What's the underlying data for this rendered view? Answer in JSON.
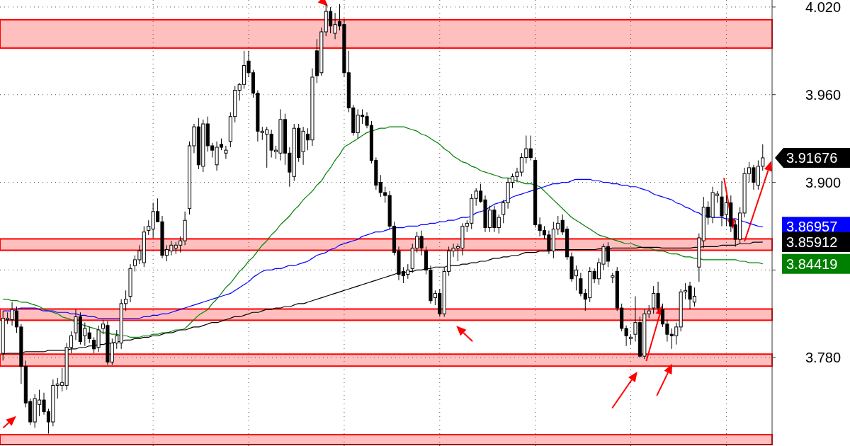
{
  "chart_data": {
    "type": "candlestick",
    "categories": [
      null,
      null,
      null,
      null,
      null,
      null,
      null,
      null,
      null,
      null,
      null,
      null,
      null,
      null,
      null,
      null,
      null,
      null,
      null,
      null,
      null,
      null,
      null,
      null,
      null,
      null,
      null,
      null,
      null,
      null,
      null,
      null,
      null,
      null,
      null,
      null,
      null,
      null,
      null,
      null,
      null,
      null,
      null,
      null,
      null,
      null,
      null,
      null,
      null,
      null,
      null,
      null,
      null,
      null,
      null,
      null,
      null,
      null,
      null,
      null,
      null,
      null,
      null,
      null,
      null,
      null,
      null,
      null,
      null,
      null,
      null,
      null,
      null,
      null,
      null,
      null,
      null,
      null,
      null,
      null,
      null,
      null,
      null,
      null,
      null,
      null,
      null,
      null,
      null,
      null,
      null,
      null,
      null,
      null,
      null,
      null,
      null,
      null,
      null,
      null,
      null,
      null,
      null,
      null,
      null,
      null,
      null,
      null,
      null,
      null,
      null,
      null,
      null,
      null,
      null,
      null,
      null,
      null,
      null,
      null,
      null,
      null,
      null,
      null,
      null,
      null,
      null,
      null,
      null,
      null,
      null,
      null,
      null,
      null,
      null,
      null,
      null,
      null,
      null,
      null,
      null,
      null,
      null,
      null,
      null,
      null,
      null,
      null,
      null,
      null,
      null,
      null,
      null,
      null,
      null,
      null,
      null,
      null,
      null,
      null,
      null,
      null,
      null,
      null,
      null,
      null,
      null,
      null
    ],
    "ohlc": [
      [
        3.783,
        3.812,
        3.778,
        3.807
      ],
      [
        3.806,
        3.811,
        3.803,
        3.807
      ],
      [
        3.806,
        3.818,
        3.802,
        3.813
      ],
      [
        3.812,
        3.815,
        3.797,
        3.801
      ],
      [
        3.801,
        3.803,
        3.762,
        3.774
      ],
      [
        3.774,
        3.778,
        3.746,
        3.749
      ],
      [
        3.75,
        3.752,
        3.734,
        3.736
      ],
      [
        3.736,
        3.755,
        3.732,
        3.752
      ],
      [
        3.748,
        3.758,
        3.74,
        3.751
      ],
      [
        3.751,
        3.756,
        3.741,
        3.743
      ],
      [
        3.743,
        3.745,
        3.728,
        3.736
      ],
      [
        3.736,
        3.765,
        3.733,
        3.761
      ],
      [
        3.761,
        3.766,
        3.752,
        3.762
      ],
      [
        3.761,
        3.773,
        3.757,
        3.763
      ],
      [
        3.761,
        3.79,
        3.758,
        3.787
      ],
      [
        3.787,
        3.798,
        3.783,
        3.795
      ],
      [
        3.797,
        3.813,
        3.792,
        3.808
      ],
      [
        3.808,
        3.811,
        3.789,
        3.791
      ],
      [
        3.795,
        3.804,
        3.788,
        3.8
      ],
      [
        3.797,
        3.801,
        3.79,
        3.793
      ],
      [
        3.792,
        3.794,
        3.783,
        3.786
      ],
      [
        3.787,
        3.802,
        3.784,
        3.799
      ],
      [
        3.8,
        3.806,
        3.796,
        3.803
      ],
      [
        3.802,
        3.805,
        3.775,
        3.777
      ],
      [
        3.777,
        3.793,
        3.775,
        3.79
      ],
      [
        3.79,
        3.799,
        3.786,
        3.795
      ],
      [
        3.79,
        3.82,
        3.786,
        3.817
      ],
      [
        3.817,
        3.826,
        3.812,
        3.82
      ],
      [
        3.822,
        3.844,
        3.818,
        3.841
      ],
      [
        3.843,
        3.85,
        3.839,
        3.847
      ],
      [
        3.847,
        3.857,
        3.844,
        3.853
      ],
      [
        3.845,
        3.87,
        3.842,
        3.866
      ],
      [
        3.867,
        3.874,
        3.864,
        3.87
      ],
      [
        3.868,
        3.886,
        3.862,
        3.88
      ],
      [
        3.88,
        3.889,
        3.873,
        3.873
      ],
      [
        3.873,
        3.877,
        3.848,
        3.85
      ],
      [
        3.85,
        3.857,
        3.846,
        3.854
      ],
      [
        3.853,
        3.86,
        3.85,
        3.857
      ],
      [
        3.855,
        3.859,
        3.851,
        3.857
      ],
      [
        3.857,
        3.863,
        3.852,
        3.86
      ],
      [
        3.86,
        3.88,
        3.857,
        3.874
      ],
      [
        3.882,
        3.928,
        3.878,
        3.925
      ],
      [
        3.925,
        3.94,
        3.92,
        3.938
      ],
      [
        3.938,
        3.944,
        3.909,
        3.912
      ],
      [
        3.911,
        3.943,
        3.907,
        3.94
      ],
      [
        3.94,
        3.945,
        3.921,
        3.925
      ],
      [
        3.925,
        3.927,
        3.917,
        3.922
      ],
      [
        3.912,
        3.928,
        3.908,
        3.924
      ],
      [
        3.926,
        3.93,
        3.922,
        3.924
      ],
      [
        3.92,
        3.925,
        3.916,
        3.922
      ],
      [
        3.928,
        3.948,
        3.924,
        3.945
      ],
      [
        3.945,
        3.966,
        3.941,
        3.963
      ],
      [
        3.963,
        3.968,
        3.956,
        3.967
      ],
      [
        3.967,
        3.99,
        3.964,
        3.98
      ],
      [
        3.983,
        3.99,
        3.972,
        3.975
      ],
      [
        3.975,
        3.977,
        3.958,
        3.961
      ],
      [
        3.961,
        3.963,
        3.928,
        3.935
      ],
      [
        3.934,
        3.938,
        3.929,
        3.935
      ],
      [
        3.933,
        3.938,
        3.91,
        3.936
      ],
      [
        3.933,
        3.936,
        3.917,
        3.922
      ],
      [
        3.921,
        3.925,
        3.916,
        3.922
      ],
      [
        3.92,
        3.95,
        3.915,
        3.943
      ],
      [
        3.943,
        3.947,
        3.912,
        3.92
      ],
      [
        3.92,
        3.924,
        3.897,
        3.907
      ],
      [
        3.904,
        3.94,
        3.901,
        3.937
      ],
      [
        3.937,
        3.94,
        3.914,
        3.917
      ],
      [
        3.921,
        3.938,
        3.912,
        3.935
      ],
      [
        3.933,
        3.937,
        3.922,
        3.929
      ],
      [
        3.929,
        3.978,
        3.925,
        3.972
      ],
      [
        3.99,
        3.998,
        3.968,
        3.973
      ],
      [
        3.975,
        4.006,
        3.973,
        4.003
      ],
      [
        4.003,
        4.022,
        4.0,
        4.017
      ],
      [
        4.017,
        4.02,
        4.002,
        4.007
      ],
      [
        4.002,
        4.016,
        3.998,
        4.008
      ],
      [
        4.01,
        4.022,
        4.004,
        4.007
      ],
      [
        4.008,
        4.012,
        3.972,
        3.975
      ],
      [
        3.975,
        3.99,
        3.948,
        3.951
      ],
      [
        3.951,
        3.953,
        3.932,
        3.934
      ],
      [
        3.934,
        3.95,
        3.93,
        3.946
      ],
      [
        3.946,
        3.95,
        3.94,
        3.945
      ],
      [
        3.945,
        3.948,
        3.937,
        3.939
      ],
      [
        3.939,
        3.942,
        3.913,
        3.915
      ],
      [
        3.915,
        3.917,
        3.895,
        3.898
      ],
      [
        3.9,
        3.905,
        3.89,
        3.893
      ],
      [
        3.893,
        3.897,
        3.886,
        3.891
      ],
      [
        3.891,
        3.894,
        3.868,
        3.87
      ],
      [
        3.87,
        3.873,
        3.85,
        3.852
      ],
      [
        3.853,
        3.856,
        3.833,
        3.837
      ],
      [
        3.839,
        3.842,
        3.831,
        3.836
      ],
      [
        3.837,
        3.844,
        3.834,
        3.84
      ],
      [
        3.841,
        3.858,
        3.838,
        3.855
      ],
      [
        3.855,
        3.866,
        3.852,
        3.863
      ],
      [
        3.863,
        3.867,
        3.85,
        3.855
      ],
      [
        3.853,
        3.856,
        3.837,
        3.84
      ],
      [
        3.84,
        3.843,
        3.817,
        3.819
      ],
      [
        3.821,
        3.826,
        3.816,
        3.824
      ],
      [
        3.824,
        3.827,
        3.808,
        3.81
      ],
      [
        3.81,
        3.842,
        3.808,
        3.839
      ],
      [
        3.839,
        3.856,
        3.836,
        3.853
      ],
      [
        3.853,
        3.858,
        3.849,
        3.855
      ],
      [
        3.855,
        3.858,
        3.846,
        3.856
      ],
      [
        3.855,
        3.872,
        3.85,
        3.87
      ],
      [
        3.87,
        3.874,
        3.866,
        3.872
      ],
      [
        3.872,
        3.892,
        3.868,
        3.889
      ],
      [
        3.889,
        3.896,
        3.884,
        3.894
      ],
      [
        3.894,
        3.899,
        3.886,
        3.887
      ],
      [
        3.888,
        3.891,
        3.866,
        3.869
      ],
      [
        3.869,
        3.884,
        3.866,
        3.881
      ],
      [
        3.881,
        3.884,
        3.866,
        3.869
      ],
      [
        3.869,
        3.878,
        3.865,
        3.876
      ],
      [
        3.878,
        3.888,
        3.872,
        3.886
      ],
      [
        3.886,
        3.903,
        3.882,
        3.9
      ],
      [
        3.9,
        3.906,
        3.896,
        3.904
      ],
      [
        3.904,
        3.91,
        3.9,
        3.907
      ],
      [
        3.907,
        3.92,
        3.904,
        3.917
      ],
      [
        3.917,
        3.932,
        3.913,
        3.923
      ],
      [
        3.923,
        3.932,
        3.915,
        3.917
      ],
      [
        3.915,
        3.917,
        3.869,
        3.871
      ],
      [
        3.871,
        3.876,
        3.863,
        3.867
      ],
      [
        3.867,
        3.87,
        3.861,
        3.864
      ],
      [
        3.864,
        3.867,
        3.851,
        3.853
      ],
      [
        3.853,
        3.873,
        3.848,
        3.868
      ],
      [
        3.868,
        3.877,
        3.864,
        3.872
      ],
      [
        3.874,
        3.878,
        3.864,
        3.866
      ],
      [
        3.868,
        3.87,
        3.847,
        3.849
      ],
      [
        3.849,
        3.852,
        3.832,
        3.834
      ],
      [
        3.836,
        3.843,
        3.826,
        3.84
      ],
      [
        3.834,
        3.838,
        3.822,
        3.824
      ],
      [
        3.824,
        3.827,
        3.812,
        3.82
      ],
      [
        3.821,
        3.842,
        3.818,
        3.839
      ],
      [
        3.839,
        3.841,
        3.831,
        3.834
      ],
      [
        3.834,
        3.848,
        3.83,
        3.845
      ],
      [
        3.844,
        3.858,
        3.84,
        3.856
      ],
      [
        3.856,
        3.859,
        3.842,
        3.846
      ],
      [
        3.835,
        3.838,
        3.831,
        3.836
      ],
      [
        3.839,
        3.842,
        3.812,
        3.814
      ],
      [
        3.814,
        3.817,
        3.798,
        3.8
      ],
      [
        3.8,
        3.802,
        3.788,
        3.795
      ],
      [
        3.793,
        3.796,
        3.789,
        3.794
      ],
      [
        3.796,
        3.822,
        3.791,
        3.804
      ],
      [
        3.804,
        3.808,
        3.78,
        3.781
      ],
      [
        3.781,
        3.813,
        3.779,
        3.81
      ],
      [
        3.81,
        3.816,
        3.807,
        3.812
      ],
      [
        3.814,
        3.829,
        3.81,
        3.824
      ],
      [
        3.824,
        3.832,
        3.812,
        3.814
      ],
      [
        3.813,
        3.817,
        3.801,
        3.803
      ],
      [
        3.803,
        3.806,
        3.791,
        3.796
      ],
      [
        3.796,
        3.8,
        3.786,
        3.795
      ],
      [
        3.795,
        3.804,
        3.789,
        3.801
      ],
      [
        3.801,
        3.827,
        3.798,
        3.825
      ],
      [
        3.825,
        3.831,
        3.82,
        3.826
      ],
      [
        3.829,
        3.832,
        3.813,
        3.82
      ],
      [
        3.818,
        3.828,
        3.815,
        3.822
      ],
      [
        3.842,
        3.865,
        3.832,
        3.862
      ],
      [
        3.86,
        3.89,
        3.855,
        3.883
      ],
      [
        3.883,
        3.887,
        3.871,
        3.876
      ],
      [
        3.876,
        3.897,
        3.872,
        3.893
      ],
      [
        3.891,
        3.894,
        3.886,
        3.892
      ],
      [
        3.89,
        3.901,
        3.87,
        3.877
      ],
      [
        3.878,
        3.891,
        3.87,
        3.886
      ],
      [
        3.886,
        3.891,
        3.866,
        3.87
      ],
      [
        3.871,
        3.874,
        3.856,
        3.861
      ],
      [
        3.861,
        3.883,
        3.858,
        3.879
      ],
      [
        3.879,
        3.91,
        3.876,
        3.906
      ],
      [
        3.906,
        3.914,
        3.9,
        3.91
      ],
      [
        3.91,
        3.912,
        3.895,
        3.9
      ],
      [
        3.898,
        3.915,
        3.895,
        3.911
      ],
      [
        3.911,
        3.926,
        3.908,
        3.91676
      ]
    ],
    "value_labels": [
      null,
      null,
      null,
      null,
      null,
      null,
      null,
      null,
      null,
      null,
      null,
      null,
      null,
      null,
      null,
      null,
      null,
      null,
      null,
      null,
      null,
      null,
      null,
      null,
      null,
      null,
      null,
      null,
      null,
      null,
      null,
      null,
      null,
      null,
      null,
      null,
      null,
      null,
      null,
      null,
      null,
      null,
      null,
      null,
      null,
      null,
      null,
      null,
      null,
      null,
      null,
      null,
      null,
      null,
      null,
      null,
      null,
      null,
      null,
      null,
      null,
      null,
      null,
      null,
      null,
      null,
      null,
      null,
      null,
      null,
      null,
      null,
      null,
      null,
      null,
      null,
      null,
      null,
      null,
      null,
      null,
      null,
      null,
      null,
      null,
      null,
      null,
      null,
      null,
      null,
      null,
      null,
      null,
      null,
      null,
      null,
      null,
      null,
      null,
      null,
      null,
      null,
      null,
      null,
      null,
      null,
      null,
      null,
      null,
      null,
      null,
      null,
      null,
      null,
      null,
      null,
      null,
      null,
      null,
      null,
      null,
      null,
      null,
      null,
      null,
      null,
      null,
      null,
      null,
      null,
      null,
      null,
      null,
      null,
      null,
      null,
      null,
      null,
      null,
      null,
      null,
      null,
      null,
      null,
      null,
      null,
      null,
      null,
      null,
      null,
      null,
      null,
      null,
      null,
      null,
      null,
      null,
      null,
      null,
      null,
      null,
      null,
      null,
      null,
      null,
      null,
      null,
      "3.91676"
    ],
    "color": "#000000",
    "series": [
      {
        "type": "line",
        "color": "#008000",
        "values": [
          3.82,
          3.82,
          3.819,
          3.819,
          3.818,
          3.818,
          3.817,
          3.816,
          3.815,
          3.813,
          3.812,
          3.811,
          3.81,
          3.808,
          3.807,
          3.806,
          3.804,
          3.803,
          3.802,
          3.801,
          3.8,
          3.799,
          3.797,
          3.797,
          3.796,
          3.796,
          3.795,
          3.795,
          3.794,
          3.794,
          3.794,
          3.795,
          3.795,
          3.796,
          3.796,
          3.797,
          3.797,
          3.798,
          3.799,
          3.799,
          3.8,
          3.803,
          3.806,
          3.809,
          3.811,
          3.813,
          3.817,
          3.82,
          3.824,
          3.828,
          3.831,
          3.835,
          3.839,
          3.842,
          3.846,
          3.849,
          3.853,
          3.857,
          3.86,
          3.864,
          3.867,
          3.871,
          3.874,
          3.877,
          3.881,
          3.884,
          3.888,
          3.891,
          3.894,
          3.898,
          3.901,
          3.906,
          3.91,
          3.915,
          3.919,
          3.924,
          3.926,
          3.928,
          3.93,
          3.932,
          3.934,
          3.935,
          3.936,
          3.937,
          3.937,
          3.938,
          3.938,
          3.938,
          3.938,
          3.937,
          3.936,
          3.935,
          3.933,
          3.932,
          3.93,
          3.928,
          3.926,
          3.923,
          3.921,
          3.918,
          3.916,
          3.914,
          3.913,
          3.911,
          3.91,
          3.908,
          3.907,
          3.906,
          3.905,
          3.904,
          3.903,
          3.903,
          3.902,
          3.901,
          3.9,
          3.899,
          3.899,
          3.898,
          3.897,
          3.894,
          3.891,
          3.888,
          3.885,
          3.882,
          3.879,
          3.876,
          3.874,
          3.872,
          3.87,
          3.868,
          3.866,
          3.864,
          3.863,
          3.862,
          3.861,
          3.86,
          3.859,
          3.858,
          3.858,
          3.857,
          3.856,
          3.855,
          3.855,
          3.854,
          3.853,
          3.853,
          3.852,
          3.851,
          3.851,
          3.85,
          3.849,
          3.849,
          3.848,
          3.848,
          3.847,
          3.847,
          3.847,
          3.847,
          3.847,
          3.847,
          3.847,
          3.847,
          3.846,
          3.846,
          3.845,
          3.845,
          3.845,
          3.84419
        ],
        "value_labels": [
          null,
          null,
          null,
          null,
          null,
          null,
          null,
          null,
          null,
          null,
          null,
          null,
          null,
          null,
          null,
          null,
          null,
          null,
          null,
          null,
          null,
          null,
          null,
          null,
          null,
          null,
          null,
          null,
          null,
          null,
          null,
          null,
          null,
          null,
          null,
          null,
          null,
          null,
          null,
          null,
          null,
          null,
          null,
          null,
          null,
          null,
          null,
          null,
          null,
          null,
          null,
          null,
          null,
          null,
          null,
          null,
          null,
          null,
          null,
          null,
          null,
          null,
          null,
          null,
          null,
          null,
          null,
          null,
          null,
          null,
          null,
          null,
          null,
          null,
          null,
          null,
          null,
          null,
          null,
          null,
          null,
          null,
          null,
          null,
          null,
          null,
          null,
          null,
          null,
          null,
          null,
          null,
          null,
          null,
          null,
          null,
          null,
          null,
          null,
          null,
          null,
          null,
          null,
          null,
          null,
          null,
          null,
          null,
          null,
          null,
          null,
          null,
          null,
          null,
          null,
          null,
          null,
          null,
          null,
          null,
          null,
          null,
          null,
          null,
          null,
          null,
          null,
          null,
          null,
          null,
          null,
          null,
          null,
          null,
          null,
          null,
          null,
          null,
          null,
          null,
          null,
          null,
          null,
          null,
          null,
          null,
          null,
          null,
          null,
          null,
          null,
          null,
          null,
          null,
          null,
          null,
          null,
          null,
          null,
          null,
          null,
          null,
          null,
          null,
          null,
          null,
          null,
          "3.84419"
        ]
      },
      {
        "type": "line",
        "color": "#0000ff",
        "values": [
          3.812,
          3.812,
          3.812,
          3.813,
          3.814,
          3.814,
          3.814,
          3.814,
          3.813,
          3.812,
          3.812,
          3.812,
          3.811,
          3.811,
          3.811,
          3.81,
          3.81,
          3.809,
          3.809,
          3.808,
          3.808,
          3.807,
          3.807,
          3.807,
          3.807,
          3.807,
          3.807,
          3.807,
          3.807,
          3.807,
          3.807,
          3.808,
          3.808,
          3.809,
          3.809,
          3.81,
          3.81,
          3.811,
          3.812,
          3.813,
          3.814,
          3.815,
          3.816,
          3.817,
          3.818,
          3.819,
          3.82,
          3.821,
          3.822,
          3.823,
          3.824,
          3.826,
          3.828,
          3.83,
          3.832,
          3.835,
          3.837,
          3.839,
          3.84,
          3.84,
          3.841,
          3.841,
          3.842,
          3.843,
          3.843,
          3.844,
          3.845,
          3.846,
          3.848,
          3.85,
          3.851,
          3.852,
          3.854,
          3.855,
          3.857,
          3.858,
          3.859,
          3.86,
          3.861,
          3.863,
          3.864,
          3.865,
          3.866,
          3.866,
          3.867,
          3.868,
          3.869,
          3.869,
          3.869,
          3.87,
          3.87,
          3.87,
          3.871,
          3.871,
          3.872,
          3.872,
          3.873,
          3.873,
          3.874,
          3.874,
          3.875,
          3.876,
          3.876,
          3.877,
          3.879,
          3.88,
          3.881,
          3.883,
          3.885,
          3.886,
          3.887,
          3.888,
          3.89,
          3.891,
          3.892,
          3.893,
          3.894,
          3.895,
          3.896,
          3.897,
          3.898,
          3.899,
          3.899,
          3.9,
          3.9,
          3.901,
          3.902,
          3.902,
          3.902,
          3.902,
          3.901,
          3.901,
          3.9,
          3.9,
          3.899,
          3.899,
          3.898,
          3.898,
          3.897,
          3.897,
          3.896,
          3.895,
          3.894,
          3.892,
          3.891,
          3.89,
          3.889,
          3.888,
          3.886,
          3.885,
          3.883,
          3.882,
          3.88,
          3.879,
          3.877,
          3.877,
          3.876,
          3.876,
          3.876,
          3.875,
          3.875,
          3.875,
          3.874,
          3.873,
          3.872,
          3.871,
          3.87,
          3.86957
        ],
        "value_labels": [
          null,
          null,
          null,
          null,
          null,
          null,
          null,
          null,
          null,
          null,
          null,
          null,
          null,
          null,
          null,
          null,
          null,
          null,
          null,
          null,
          null,
          null,
          null,
          null,
          null,
          null,
          null,
          null,
          null,
          null,
          null,
          null,
          null,
          null,
          null,
          null,
          null,
          null,
          null,
          null,
          null,
          null,
          null,
          null,
          null,
          null,
          null,
          null,
          null,
          null,
          null,
          null,
          null,
          null,
          null,
          null,
          null,
          null,
          null,
          null,
          null,
          null,
          null,
          null,
          null,
          null,
          null,
          null,
          null,
          null,
          null,
          null,
          null,
          null,
          null,
          null,
          null,
          null,
          null,
          null,
          null,
          null,
          null,
          null,
          null,
          null,
          null,
          null,
          null,
          null,
          null,
          null,
          null,
          null,
          null,
          null,
          null,
          null,
          null,
          null,
          null,
          null,
          null,
          null,
          null,
          null,
          null,
          null,
          null,
          null,
          null,
          null,
          null,
          null,
          null,
          null,
          null,
          null,
          null,
          null,
          null,
          null,
          null,
          null,
          null,
          null,
          null,
          null,
          null,
          null,
          null,
          null,
          null,
          null,
          null,
          null,
          null,
          null,
          null,
          null,
          null,
          null,
          null,
          null,
          null,
          null,
          null,
          null,
          null,
          null,
          null,
          null,
          null,
          null,
          null,
          null,
          null,
          null,
          null,
          null,
          null,
          null,
          null,
          null,
          null,
          null,
          null,
          "3.86957"
        ]
      },
      {
        "type": "line",
        "color": "#000000",
        "values": [
          3.7825,
          3.783,
          3.783,
          3.783,
          3.783,
          3.784,
          3.784,
          3.784,
          3.784,
          3.784,
          3.785,
          3.785,
          3.785,
          3.785,
          3.785,
          3.786,
          3.786,
          3.787,
          3.787,
          3.788,
          3.788,
          3.789,
          3.789,
          3.79,
          3.79,
          3.791,
          3.791,
          3.792,
          3.792,
          3.793,
          3.793,
          3.794,
          3.794,
          3.795,
          3.795,
          3.796,
          3.797,
          3.797,
          3.798,
          3.799,
          3.799,
          3.8,
          3.801,
          3.801,
          3.802,
          3.803,
          3.804,
          3.804,
          3.805,
          3.806,
          3.807,
          3.808,
          3.808,
          3.809,
          3.81,
          3.811,
          3.811,
          3.812,
          3.813,
          3.813,
          3.814,
          3.814,
          3.815,
          3.815,
          3.816,
          3.817,
          3.817,
          3.818,
          3.819,
          3.82,
          3.821,
          3.822,
          3.823,
          3.824,
          3.825,
          3.826,
          3.827,
          3.828,
          3.829,
          3.83,
          3.831,
          3.832,
          3.833,
          3.834,
          3.835,
          3.836,
          3.837,
          3.838,
          3.838,
          3.839,
          3.839,
          3.84,
          3.84,
          3.841,
          3.841,
          3.842,
          3.842,
          3.842,
          3.843,
          3.843,
          3.843,
          3.844,
          3.844,
          3.845,
          3.845,
          3.846,
          3.846,
          3.847,
          3.848,
          3.848,
          3.849,
          3.849,
          3.85,
          3.85,
          3.851,
          3.852,
          3.852,
          3.852,
          3.853,
          3.853,
          3.853,
          3.854,
          3.854,
          3.854,
          3.854,
          3.854,
          3.854,
          3.854,
          3.854,
          3.854,
          3.854,
          3.8545,
          3.8545,
          3.8545,
          3.855,
          3.855,
          3.855,
          3.855,
          3.855,
          3.855,
          3.8555,
          3.8555,
          3.8555,
          3.8555,
          3.8555,
          3.855,
          3.855,
          3.855,
          3.855,
          3.855,
          3.855,
          3.855,
          3.8555,
          3.8555,
          3.856,
          3.856,
          3.856,
          3.856,
          3.857,
          3.857,
          3.857,
          3.857,
          3.858,
          3.858,
          3.858,
          3.859,
          3.859,
          3.85912
        ],
        "value_labels": [
          null,
          null,
          null,
          null,
          null,
          null,
          null,
          null,
          null,
          null,
          null,
          null,
          null,
          null,
          null,
          null,
          null,
          null,
          null,
          null,
          null,
          null,
          null,
          null,
          null,
          null,
          null,
          null,
          null,
          null,
          null,
          null,
          null,
          null,
          null,
          null,
          null,
          null,
          null,
          null,
          null,
          null,
          null,
          null,
          null,
          null,
          null,
          null,
          null,
          null,
          null,
          null,
          null,
          null,
          null,
          null,
          null,
          null,
          null,
          null,
          null,
          null,
          null,
          null,
          null,
          null,
          null,
          null,
          null,
          null,
          null,
          null,
          null,
          null,
          null,
          null,
          null,
          null,
          null,
          null,
          null,
          null,
          null,
          null,
          null,
          null,
          null,
          null,
          null,
          null,
          null,
          null,
          null,
          null,
          null,
          null,
          null,
          null,
          null,
          null,
          null,
          null,
          null,
          null,
          null,
          null,
          null,
          null,
          null,
          null,
          null,
          null,
          null,
          null,
          null,
          null,
          null,
          null,
          null,
          null,
          null,
          null,
          null,
          null,
          null,
          null,
          null,
          null,
          null,
          null,
          null,
          null,
          null,
          null,
          null,
          null,
          null,
          null,
          null,
          null,
          null,
          null,
          null,
          null,
          null,
          null,
          null,
          null,
          null,
          null,
          null,
          null,
          null,
          null,
          null,
          null,
          null,
          null,
          null,
          null,
          null,
          null,
          null,
          null,
          null,
          null,
          null,
          "3.85912"
        ]
      }
    ],
    "ylim": [
      3.7205,
      4.0248
    ],
    "yticks": [
      {
        "value": 3.78,
        "label": "3.780"
      },
      {
        "value": 3.84,
        "label": null
      },
      {
        "value": 3.9,
        "label": "3.900"
      },
      {
        "value": 3.96,
        "label": "3.960"
      },
      {
        "value": 4.02,
        "label": "4.020"
      }
    ],
    "grid": true,
    "bands": [
      {
        "axis": "y",
        "from": 3.9919,
        "to": 4.0113,
        "color": "#ff0000"
      },
      {
        "axis": "y",
        "from": 3.8535,
        "to": 3.8613,
        "color": "#ff0000"
      },
      {
        "axis": "y",
        "from": 3.8056,
        "to": 3.8133,
        "color": "#ff0000"
      },
      {
        "axis": "y",
        "from": 3.7742,
        "to": 3.7824,
        "color": "#ff0000"
      },
      {
        "axis": "y",
        "from": 3.7205,
        "to": 3.7273,
        "color": "#ff0000"
      }
    ]
  }
}
